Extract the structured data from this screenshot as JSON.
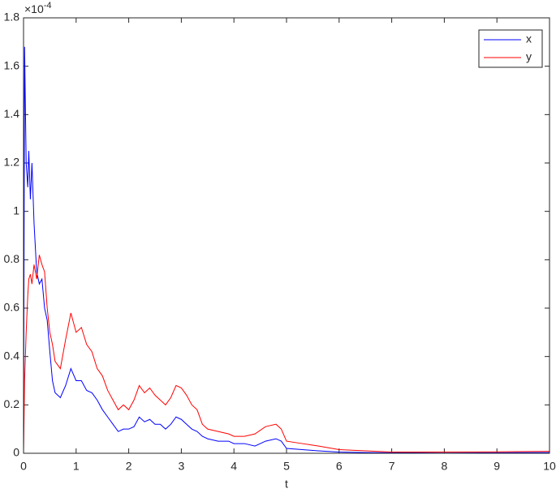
{
  "chart_data": {
    "type": "line",
    "x_label": "t",
    "y_multiplier": "×10",
    "y_multiplier_exponent": "-4",
    "x": [
      0,
      0.02,
      0.05,
      0.08,
      0.1,
      0.13,
      0.16,
      0.2,
      0.25,
      0.3,
      0.35,
      0.4,
      0.45,
      0.5,
      0.55,
      0.6,
      0.7,
      0.8,
      0.9,
      1.0,
      1.1,
      1.2,
      1.3,
      1.4,
      1.5,
      1.6,
      1.7,
      1.8,
      1.9,
      2.0,
      2.1,
      2.2,
      2.3,
      2.4,
      2.5,
      2.6,
      2.7,
      2.8,
      2.9,
      3.0,
      3.1,
      3.2,
      3.3,
      3.4,
      3.5,
      3.7,
      3.9,
      4.0,
      4.2,
      4.4,
      4.6,
      4.8,
      4.9,
      5.0,
      5.3,
      5.6,
      6.0,
      6.5,
      7,
      8,
      9,
      10
    ],
    "series": [
      {
        "name": "x",
        "color": "#0000ff",
        "values": [
          0,
          1.68,
          1.2,
          1.1,
          1.25,
          1.05,
          1.2,
          0.95,
          0.75,
          0.7,
          0.72,
          0.6,
          0.55,
          0.42,
          0.3,
          0.25,
          0.23,
          0.28,
          0.35,
          0.3,
          0.3,
          0.26,
          0.25,
          0.22,
          0.18,
          0.15,
          0.12,
          0.09,
          0.1,
          0.1,
          0.11,
          0.15,
          0.13,
          0.14,
          0.12,
          0.12,
          0.1,
          0.12,
          0.15,
          0.14,
          0.12,
          0.1,
          0.09,
          0.07,
          0.06,
          0.05,
          0.05,
          0.04,
          0.04,
          0.03,
          0.05,
          0.06,
          0.05,
          0.02,
          0.015,
          0.01,
          0.005,
          0.003,
          0.002,
          0.001,
          0.002,
          0.003
        ]
      },
      {
        "name": "y",
        "color": "#ff0000",
        "values": [
          0,
          0.3,
          0.5,
          0.65,
          0.72,
          0.74,
          0.7,
          0.78,
          0.72,
          0.82,
          0.78,
          0.75,
          0.6,
          0.5,
          0.45,
          0.38,
          0.35,
          0.47,
          0.58,
          0.5,
          0.52,
          0.45,
          0.42,
          0.35,
          0.32,
          0.26,
          0.22,
          0.18,
          0.2,
          0.18,
          0.22,
          0.28,
          0.25,
          0.27,
          0.24,
          0.22,
          0.2,
          0.23,
          0.28,
          0.27,
          0.24,
          0.2,
          0.18,
          0.12,
          0.1,
          0.09,
          0.08,
          0.07,
          0.07,
          0.08,
          0.11,
          0.12,
          0.1,
          0.05,
          0.04,
          0.03,
          0.015,
          0.01,
          0.005,
          0.005,
          0.006,
          0.008
        ]
      }
    ],
    "xlim": [
      0,
      10
    ],
    "xticks": [
      0,
      1,
      2,
      3,
      4,
      5,
      6,
      7,
      8,
      9,
      10
    ],
    "ylim": [
      0,
      1.8
    ],
    "yticks": [
      0,
      0.2,
      0.4,
      0.6,
      0.8,
      1,
      1.2,
      1.4,
      1.6,
      1.8
    ],
    "grid": false,
    "legend": "top-right"
  }
}
